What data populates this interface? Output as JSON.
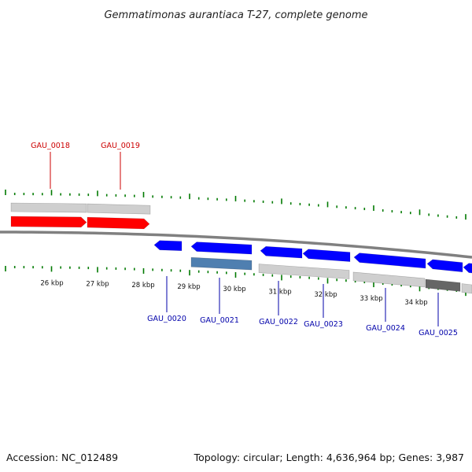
{
  "title": "Gemmatimonas aurantiaca T-27, complete genome",
  "footer": {
    "accession": "Accession: NC_012489",
    "summary": "Topology: circular; Length: 4,636,964 bp; Genes: 3,987"
  },
  "colors": {
    "forward_gene": "#ff0000",
    "reverse_gene": "#0000ff",
    "backbone": "#808080",
    "tick": "#007a00",
    "cds_feature": "#cfcfcf",
    "highlight_feature": "#4f7fb0",
    "dark_feature": "#666666",
    "forward_label": "#cc0000",
    "reverse_label": "#0000aa"
  },
  "scale_labels": [
    "26 kbp",
    "27 kbp",
    "28 kbp",
    "29 kbp",
    "30 kbp",
    "31 kbp",
    "32 kbp",
    "33 kbp",
    "34 kbp"
  ],
  "genes": [
    {
      "name": "GAU_0018",
      "strand": "forward"
    },
    {
      "name": "GAU_0019",
      "strand": "forward"
    },
    {
      "name": "GAU_0020",
      "strand": "reverse"
    },
    {
      "name": "GAU_0021",
      "strand": "reverse"
    },
    {
      "name": "GAU_0022",
      "strand": "reverse"
    },
    {
      "name": "GAU_0023",
      "strand": "reverse"
    },
    {
      "name": "GAU_0024",
      "strand": "reverse"
    },
    {
      "name": "GAU_0025",
      "strand": "reverse"
    }
  ]
}
